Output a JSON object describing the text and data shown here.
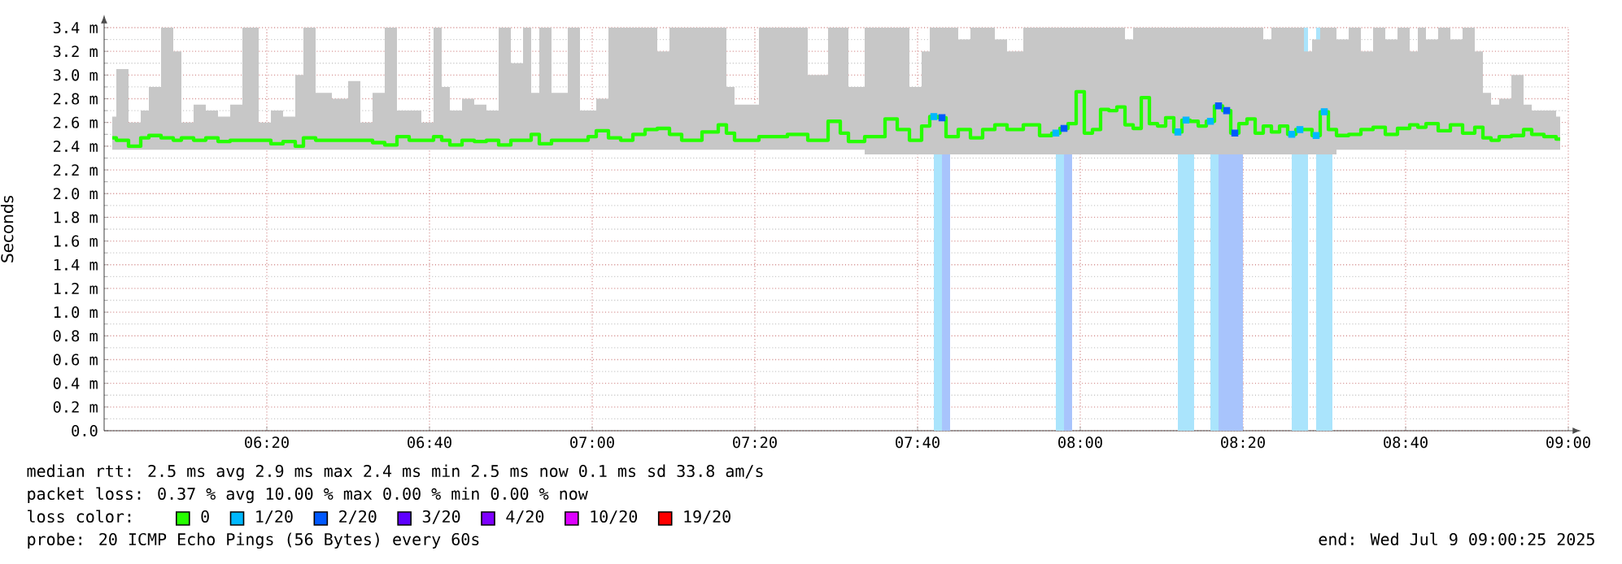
{
  "chart_data": {
    "type": "step",
    "ylabel": "Seconds",
    "legend_title": "loss color:",
    "legend": "bottom",
    "grid": true,
    "xlim": [
      6.0,
      9.0
    ],
    "ylim": [
      0,
      3.4
    ],
    "xticks": [
      {
        "value": 6.333333,
        "label": "06:20"
      },
      {
        "value": 6.666667,
        "label": "06:40"
      },
      {
        "value": 7.0,
        "label": "07:00"
      },
      {
        "value": 7.333333,
        "label": "07:20"
      },
      {
        "value": 7.666667,
        "label": "07:40"
      },
      {
        "value": 8.0,
        "label": "08:00"
      },
      {
        "value": 8.333333,
        "label": "08:20"
      },
      {
        "value": 8.666667,
        "label": "08:40"
      },
      {
        "value": 9.0,
        "label": "09:00"
      }
    ],
    "yticks": [
      {
        "value": 0,
        "label": "0.0"
      },
      {
        "value": 0.2,
        "label": "0.2 m"
      },
      {
        "value": 0.4,
        "label": "0.4 m"
      },
      {
        "value": 0.6,
        "label": "0.6 m"
      },
      {
        "value": 0.8,
        "label": "0.8 m"
      },
      {
        "value": 1.0,
        "label": "1.0 m"
      },
      {
        "value": 1.2,
        "label": "1.2 m"
      },
      {
        "value": 1.4,
        "label": "1.4 m"
      },
      {
        "value": 1.6,
        "label": "1.6 m"
      },
      {
        "value": 1.8,
        "label": "1.8 m"
      },
      {
        "value": 2.0,
        "label": "2.0 m"
      },
      {
        "value": 2.2,
        "label": "2.2 m"
      },
      {
        "value": 2.4,
        "label": "2.4 m"
      },
      {
        "value": 2.6,
        "label": "2.6 m"
      },
      {
        "value": 2.8,
        "label": "2.8 m"
      },
      {
        "value": 3.0,
        "label": "3.0 m"
      },
      {
        "value": 3.2,
        "label": "3.2 m"
      },
      {
        "value": 3.4,
        "label": "3.4 m"
      }
    ],
    "bands": [
      {
        "axis": "x",
        "from": 7.7,
        "to": 7.7167,
        "color": "#aae4fc"
      },
      {
        "axis": "x",
        "from": 7.7167,
        "to": 7.7333,
        "color": "#a8c4fc"
      },
      {
        "axis": "x",
        "from": 7.95,
        "to": 7.9667,
        "color": "#aae4fc"
      },
      {
        "axis": "x",
        "from": 7.9667,
        "to": 7.9833,
        "color": "#a8c4fc"
      },
      {
        "axis": "x",
        "from": 8.2,
        "to": 8.2333,
        "color": "#aae4fc"
      },
      {
        "axis": "x",
        "from": 8.2667,
        "to": 8.2833,
        "color": "#aae4fc"
      },
      {
        "axis": "x",
        "from": 8.2833,
        "to": 8.3333,
        "color": "#a8c4fc"
      },
      {
        "axis": "x",
        "from": 8.4333,
        "to": 8.4667,
        "color": "#aae4fc"
      },
      {
        "axis": "x",
        "from": 8.4833,
        "to": 8.5167,
        "color": "#aae4fc"
      }
    ],
    "annotations": [
      "median rtt: 2.5 ms avg 2.9 ms max 2.4 ms min 2.5 ms now 0.1 ms sd 33.8 am/s",
      "packet loss: 0.37 % avg 10.00 % max 0.00 % min 0.00 % now",
      "probe: 20 ICMP Echo Pings (56 Bytes) every 60s",
      "end: Wed Jul 9 09:00:25 2025"
    ],
    "series": [
      {
        "name": "0",
        "color": "#26ff00",
        "x": [
          6.0167,
          6.0333,
          6.0667,
          6.0833,
          6.1,
          6.1333,
          6.15,
          6.1667,
          6.2,
          6.2167,
          6.25,
          6.2667,
          6.3,
          6.3333,
          6.35,
          6.3833,
          6.4,
          6.4167,
          6.45,
          6.4833,
          6.5167,
          6.5333,
          6.5667,
          6.5833,
          6.6167,
          6.6333,
          6.6667,
          6.6833,
          6.7,
          6.7167,
          6.75,
          6.7667,
          6.8,
          6.8167,
          6.85,
          6.8667,
          6.8833,
          6.9,
          6.9333,
          6.9667,
          6.9833,
          7.0,
          7.0167,
          7.05,
          7.0667,
          7.1,
          7.1167,
          7.15,
          7.1667,
          7.2,
          7.25,
          7.2667,
          7.2833,
          7.3,
          7.3833,
          7.4167,
          7.4667,
          7.5,
          7.5167,
          7.5333,
          7.5833,
          7.6167,
          7.6333,
          7.6667,
          7.6833,
          7.7,
          7.7167,
          7.7333,
          7.7667,
          7.7833,
          7.8167,
          7.8333,
          7.8667,
          7.9,
          7.9333,
          7.95,
          7.9667,
          7.9833,
          8.0,
          8.0167,
          8.0333,
          8.05,
          8.0667,
          8.0833,
          8.1,
          8.1167,
          8.1333,
          8.15,
          8.1667,
          8.1833,
          8.2,
          8.2167,
          8.2333,
          8.25,
          8.2667,
          8.2833,
          8.3,
          8.3167,
          8.3333,
          8.35,
          8.3667,
          8.3833,
          8.4,
          8.4167,
          8.4333,
          8.45,
          8.4667,
          8.4833,
          8.5,
          8.5167,
          8.5333,
          8.5667,
          8.5833,
          8.6167,
          8.6333,
          8.6667,
          8.6833,
          8.7,
          8.7167,
          8.75,
          8.7667,
          8.8,
          8.8167,
          8.8333,
          8.85,
          8.8667,
          8.9,
          8.9167,
          8.9333,
          8.9667,
          8.9833
        ],
        "values": [
          2.47,
          2.45,
          2.4,
          2.47,
          2.49,
          2.47,
          2.45,
          2.47,
          2.45,
          2.47,
          2.44,
          2.45,
          2.45,
          2.45,
          2.42,
          2.44,
          2.4,
          2.47,
          2.45,
          2.45,
          2.45,
          2.45,
          2.43,
          2.41,
          2.48,
          2.45,
          2.45,
          2.48,
          2.45,
          2.41,
          2.45,
          2.44,
          2.45,
          2.41,
          2.45,
          2.45,
          2.5,
          2.42,
          2.45,
          2.45,
          2.45,
          2.48,
          2.53,
          2.47,
          2.45,
          2.5,
          2.54,
          2.55,
          2.5,
          2.45,
          2.52,
          2.58,
          2.51,
          2.45,
          2.48,
          2.5,
          2.45,
          2.61,
          2.51,
          2.44,
          2.48,
          2.63,
          2.54,
          2.45,
          2.57,
          2.65,
          2.64,
          2.48,
          2.54,
          2.47,
          2.54,
          2.58,
          2.54,
          2.58,
          2.49,
          2.51,
          2.55,
          2.59,
          2.86,
          2.51,
          2.54,
          2.71,
          2.7,
          2.73,
          2.58,
          2.55,
          2.81,
          2.59,
          2.57,
          2.64,
          2.52,
          2.62,
          2.61,
          2.57,
          2.61,
          2.74,
          2.7,
          2.51,
          2.59,
          2.63,
          2.51,
          2.57,
          2.52,
          2.57,
          2.5,
          2.54,
          2.54,
          2.49,
          2.69,
          2.54,
          2.49,
          2.5,
          2.54,
          2.56,
          2.5,
          2.55,
          2.58,
          2.56,
          2.59,
          2.53,
          2.58,
          2.51,
          2.56,
          2.47,
          2.45,
          2.48,
          2.49,
          2.54,
          2.5,
          2.48,
          2.46
        ],
        "upper": [
          2.65,
          3.05,
          2.6,
          2.7,
          2.9,
          3.4,
          3.2,
          2.6,
          2.75,
          2.7,
          2.65,
          2.75,
          3.4,
          2.6,
          2.7,
          2.65,
          3.0,
          3.4,
          2.85,
          2.8,
          2.95,
          2.6,
          2.85,
          3.4,
          2.7,
          2.7,
          2.6,
          3.4,
          2.9,
          2.7,
          2.8,
          2.75,
          2.7,
          3.4,
          3.1,
          3.4,
          2.85,
          3.4,
          2.85,
          3.4,
          2.7,
          2.7,
          2.8,
          3.4,
          3.4,
          3.4,
          3.4,
          3.2,
          3.4,
          3.4,
          3.4,
          3.4,
          2.9,
          2.75,
          3.4,
          3.4,
          3.0,
          3.4,
          3.4,
          2.9,
          3.4,
          3.4,
          3.4,
          2.9,
          3.2,
          3.4,
          3.4,
          3.4,
          3.3,
          3.4,
          3.4,
          3.3,
          3.2,
          3.4,
          3.4,
          3.4,
          3.4,
          3.4,
          3.4,
          3.4,
          3.4,
          3.4,
          3.4,
          3.4,
          3.3,
          3.4,
          3.4,
          3.4,
          3.4,
          3.4,
          3.4,
          3.4,
          3.4,
          3.4,
          3.4,
          3.4,
          3.4,
          3.4,
          3.4,
          3.4,
          3.4,
          3.3,
          3.4,
          3.4,
          3.4,
          3.4,
          3.2,
          3.3,
          3.4,
          3.4,
          3.3,
          3.4,
          3.2,
          3.4,
          3.3,
          3.4,
          3.2,
          3.4,
          3.3,
          3.4,
          3.3,
          3.4,
          3.2,
          2.85,
          2.75,
          2.8,
          3.0,
          2.75,
          2.7,
          2.7,
          2.65
        ],
        "lower": [
          2.37,
          2.37,
          2.37,
          2.37,
          2.37,
          2.37,
          2.37,
          2.37,
          2.37,
          2.37,
          2.37,
          2.37,
          2.37,
          2.37,
          2.37,
          2.37,
          2.37,
          2.37,
          2.37,
          2.37,
          2.37,
          2.37,
          2.37,
          2.37,
          2.37,
          2.37,
          2.37,
          2.37,
          2.37,
          2.37,
          2.37,
          2.37,
          2.37,
          2.37,
          2.37,
          2.37,
          2.37,
          2.37,
          2.37,
          2.37,
          2.37,
          2.37,
          2.37,
          2.37,
          2.37,
          2.37,
          2.37,
          2.37,
          2.37,
          2.37,
          2.37,
          2.37,
          2.37,
          2.37,
          2.37,
          2.37,
          2.37,
          2.37,
          2.37,
          2.37,
          2.33,
          2.33,
          2.33,
          2.33,
          2.33,
          2.33,
          2.33,
          2.33,
          2.33,
          2.33,
          2.33,
          2.33,
          2.33,
          2.33,
          2.33,
          2.33,
          2.33,
          2.33,
          2.33,
          2.33,
          2.33,
          2.33,
          2.33,
          2.33,
          2.33,
          2.33,
          2.33,
          2.33,
          2.33,
          2.33,
          2.33,
          2.33,
          2.33,
          2.33,
          2.33,
          2.33,
          2.33,
          2.33,
          2.33,
          2.33,
          2.33,
          2.33,
          2.33,
          2.33,
          2.33,
          2.33,
          2.33,
          2.33,
          2.33,
          2.33,
          2.37,
          2.37,
          2.37,
          2.37,
          2.37,
          2.37,
          2.37,
          2.37,
          2.37,
          2.37,
          2.37,
          2.37,
          2.37,
          2.37,
          2.37,
          2.37,
          2.37,
          2.37,
          2.37,
          2.37,
          2.37
        ]
      },
      {
        "name": "1/20",
        "color": "#00b8ff",
        "type": "scatter",
        "marker": "square",
        "x": [
          7.7,
          7.95,
          8.2,
          8.2167,
          8.2667,
          8.4333,
          8.45,
          8.4833,
          8.5
        ],
        "values": [
          2.65,
          2.51,
          2.52,
          2.62,
          2.61,
          2.5,
          2.54,
          2.49,
          2.69
        ]
      },
      {
        "name": "2/20",
        "color": "#0059ff",
        "type": "scatter",
        "marker": "square",
        "x": [
          7.7167,
          7.9667,
          8.2833,
          8.3,
          8.3167
        ],
        "values": [
          2.64,
          2.55,
          2.74,
          2.7,
          2.51
        ]
      },
      {
        "name": "3/20",
        "color": "#5e00ff",
        "type": "scatter",
        "marker": "square"
      },
      {
        "name": "4/20",
        "color": "#7e00ff",
        "type": "scatter",
        "marker": "square"
      },
      {
        "name": "10/20",
        "color": "#dd00ff",
        "type": "scatter",
        "marker": "square"
      },
      {
        "name": "19/20",
        "color": "#ff0000",
        "type": "scatter",
        "marker": "square"
      }
    ]
  }
}
